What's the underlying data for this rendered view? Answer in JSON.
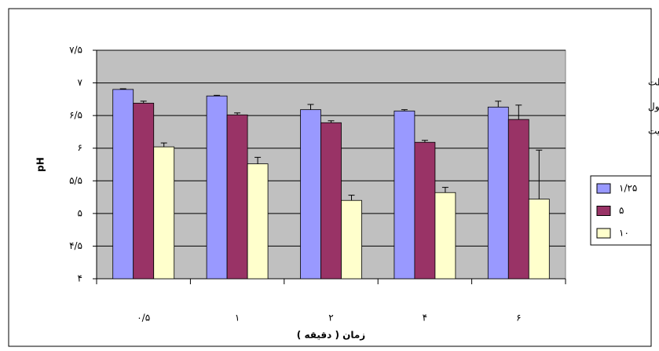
{
  "chart_data": {
    "type": "bar",
    "x_label": "زمان ( دقیقه )",
    "y_label": "pH",
    "legend_title": [
      "درصد غلظت",
      "محلول",
      "متابی سولفیت"
    ],
    "categories": [
      "۰/۵",
      "۱",
      "۲",
      "۴",
      "۶"
    ],
    "series": [
      {
        "name": "۱/۲۵",
        "color": "#9999ff",
        "values": [
          6.9,
          6.8,
          6.59,
          6.57,
          6.63
        ],
        "errors": [
          0.01,
          0.01,
          0.08,
          0.02,
          0.09
        ]
      },
      {
        "name": "۵",
        "color": "#993366",
        "values": [
          6.69,
          6.51,
          6.39,
          6.09,
          6.44
        ],
        "errors": [
          0.03,
          0.03,
          0.03,
          0.03,
          0.22
        ]
      },
      {
        "name": "۱۰",
        "color": "#ffffcc",
        "values": [
          6.02,
          5.76,
          5.2,
          5.32,
          5.22
        ],
        "errors": [
          0.06,
          0.1,
          0.08,
          0.08,
          0.75
        ]
      }
    ],
    "ylim": [
      4,
      7.5
    ],
    "yticks": [
      {
        "value": 4,
        "label": "۴"
      },
      {
        "value": 4.5,
        "label": "۴/۵"
      },
      {
        "value": 5,
        "label": "۵"
      },
      {
        "value": 5.5,
        "label": "۵/۵"
      },
      {
        "value": 6,
        "label": "۶"
      },
      {
        "value": 6.5,
        "label": "۶/۵"
      },
      {
        "value": 7,
        "label": "۷"
      },
      {
        "value": 7.5,
        "label": "۷/۵"
      }
    ],
    "grid": true
  }
}
